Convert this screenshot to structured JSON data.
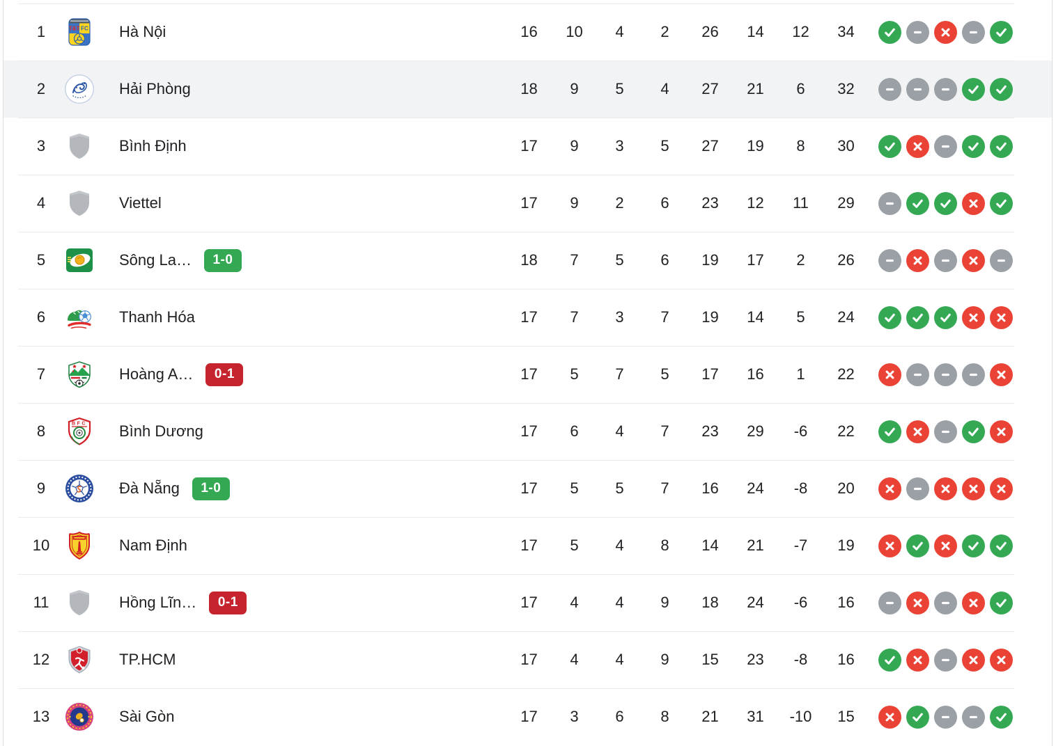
{
  "table": {
    "rows": [
      {
        "id": "ha-noi",
        "pos": "1",
        "team": "Hà Nội",
        "logo": "ha-noi-crest",
        "highlighted": false,
        "badge": null,
        "stats": [
          "16",
          "10",
          "4",
          "2",
          "26",
          "14",
          "12",
          "34"
        ],
        "form": [
          "W",
          "D",
          "L",
          "D",
          "W"
        ]
      },
      {
        "id": "hai-phong",
        "pos": "2",
        "team": "Hải Phòng",
        "logo": "hai-phong-crest",
        "highlighted": true,
        "badge": null,
        "stats": [
          "18",
          "9",
          "5",
          "4",
          "27",
          "21",
          "6",
          "32"
        ],
        "form": [
          "D",
          "D",
          "D",
          "W",
          "W"
        ]
      },
      {
        "id": "binh-dinh",
        "pos": "3",
        "team": "Bình Định",
        "logo": "generic-crest",
        "highlighted": false,
        "badge": null,
        "stats": [
          "17",
          "9",
          "3",
          "5",
          "27",
          "19",
          "8",
          "30"
        ],
        "form": [
          "W",
          "L",
          "D",
          "W",
          "W"
        ]
      },
      {
        "id": "viettel",
        "pos": "4",
        "team": "Viettel",
        "logo": "generic-crest",
        "highlighted": false,
        "badge": null,
        "stats": [
          "17",
          "9",
          "2",
          "6",
          "23",
          "12",
          "11",
          "29"
        ],
        "form": [
          "D",
          "W",
          "W",
          "L",
          "W"
        ]
      },
      {
        "id": "song-lam",
        "pos": "5",
        "team": "Sông La…",
        "logo": "song-lam-crest",
        "highlighted": false,
        "badge": {
          "text": "1-0",
          "result": "win"
        },
        "stats": [
          "18",
          "7",
          "5",
          "6",
          "19",
          "17",
          "2",
          "26"
        ],
        "form": [
          "D",
          "L",
          "D",
          "L",
          "D"
        ]
      },
      {
        "id": "thanh-hoa",
        "pos": "6",
        "team": "Thanh Hóa",
        "logo": "thanh-hoa-crest",
        "highlighted": false,
        "badge": null,
        "stats": [
          "17",
          "7",
          "3",
          "7",
          "19",
          "14",
          "5",
          "24"
        ],
        "form": [
          "W",
          "W",
          "W",
          "L",
          "L"
        ]
      },
      {
        "id": "hoang-anh",
        "pos": "7",
        "team": "Hoàng A…",
        "logo": "hoang-anh-crest",
        "highlighted": false,
        "badge": {
          "text": "0-1",
          "result": "loss"
        },
        "stats": [
          "17",
          "5",
          "7",
          "5",
          "17",
          "16",
          "1",
          "22"
        ],
        "form": [
          "L",
          "D",
          "D",
          "D",
          "L"
        ]
      },
      {
        "id": "binh-duong",
        "pos": "8",
        "team": "Bình Dương",
        "logo": "binh-duong-crest",
        "highlighted": false,
        "badge": null,
        "stats": [
          "17",
          "6",
          "4",
          "7",
          "23",
          "29",
          "-6",
          "22"
        ],
        "form": [
          "W",
          "L",
          "D",
          "W",
          "L"
        ]
      },
      {
        "id": "da-nang",
        "pos": "9",
        "team": "Đà Nẵng",
        "logo": "da-nang-crest",
        "highlighted": false,
        "badge": {
          "text": "1-0",
          "result": "win"
        },
        "stats": [
          "17",
          "5",
          "5",
          "7",
          "16",
          "24",
          "-8",
          "20"
        ],
        "form": [
          "L",
          "D",
          "L",
          "L",
          "L"
        ]
      },
      {
        "id": "nam-dinh",
        "pos": "10",
        "team": "Nam Định",
        "logo": "nam-dinh-crest",
        "highlighted": false,
        "badge": null,
        "stats": [
          "17",
          "5",
          "4",
          "8",
          "14",
          "21",
          "-7",
          "19"
        ],
        "form": [
          "L",
          "W",
          "L",
          "W",
          "W"
        ]
      },
      {
        "id": "hong-linh",
        "pos": "11",
        "team": "Hồng Lĩn…",
        "logo": "generic-crest",
        "highlighted": false,
        "badge": {
          "text": "0-1",
          "result": "loss"
        },
        "stats": [
          "17",
          "4",
          "4",
          "9",
          "18",
          "24",
          "-6",
          "16"
        ],
        "form": [
          "D",
          "L",
          "D",
          "L",
          "W"
        ]
      },
      {
        "id": "tp-hcm",
        "pos": "12",
        "team": "TP.HCM",
        "logo": "tp-hcm-crest",
        "highlighted": false,
        "badge": null,
        "stats": [
          "17",
          "4",
          "4",
          "9",
          "15",
          "23",
          "-8",
          "16"
        ],
        "form": [
          "W",
          "L",
          "D",
          "L",
          "L"
        ]
      },
      {
        "id": "sai-gon",
        "pos": "13",
        "team": "Sài Gòn",
        "logo": "sai-gon-crest",
        "highlighted": false,
        "badge": null,
        "stats": [
          "17",
          "3",
          "6",
          "8",
          "21",
          "31",
          "-10",
          "15"
        ],
        "form": [
          "L",
          "W",
          "D",
          "D",
          "W"
        ]
      }
    ]
  },
  "form_legend": {
    "W": "win-icon",
    "D": "draw-icon",
    "L": "loss-icon"
  },
  "colors": {
    "win": "#34a853",
    "draw": "#9aa0a6",
    "loss": "#ea4335",
    "badge_win": "#34a853",
    "badge_loss": "#c5232d",
    "row_highlight": "#f1f3f4",
    "divider": "#e8eaed",
    "card_border": "#dadce0",
    "text": "#202124"
  }
}
